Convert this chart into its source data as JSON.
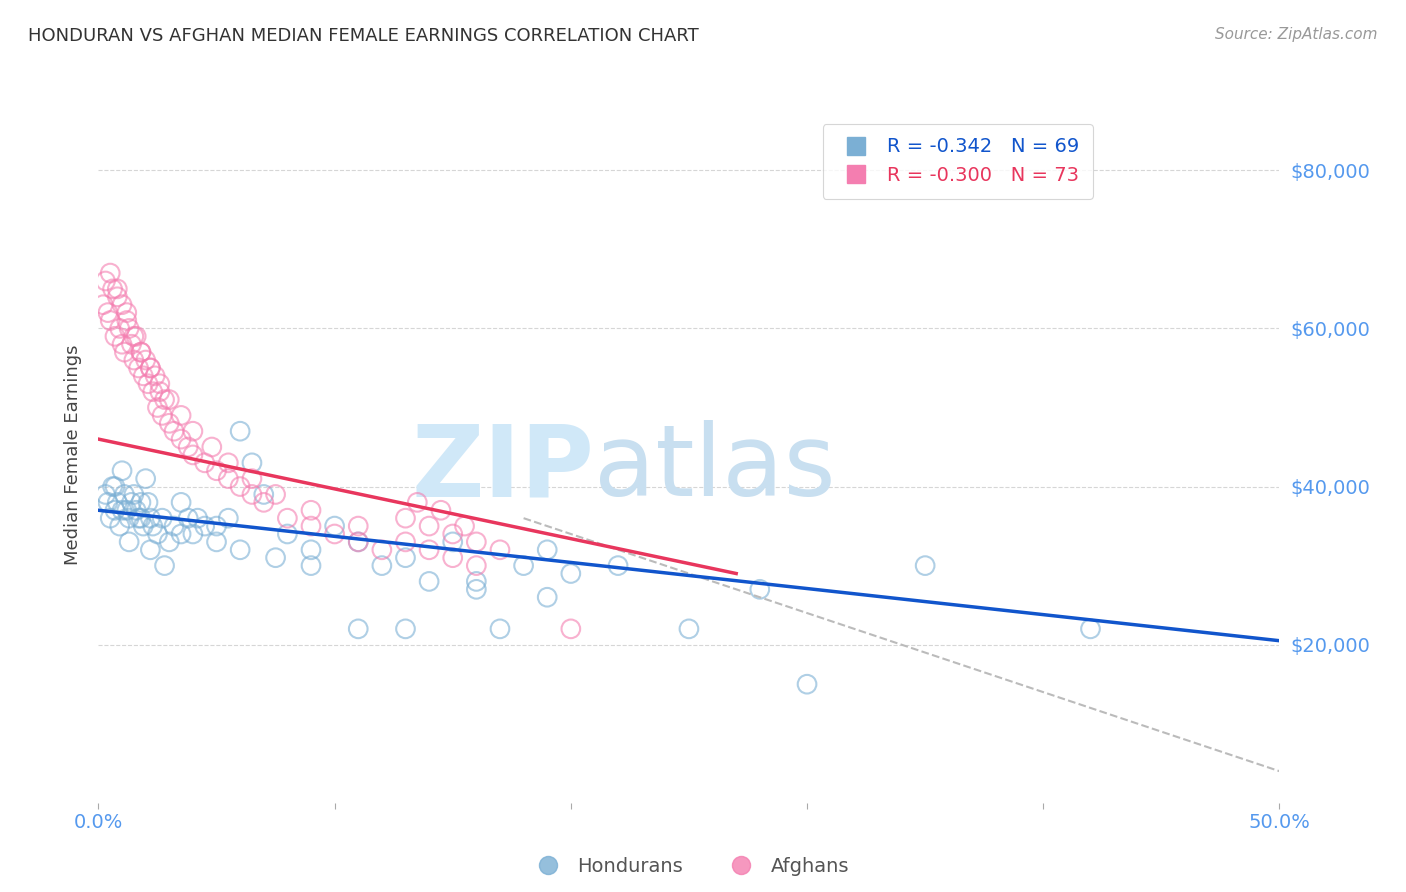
{
  "title": "HONDURAN VS AFGHAN MEDIAN FEMALE EARNINGS CORRELATION CHART",
  "source": "Source: ZipAtlas.com",
  "ylabel": "Median Female Earnings",
  "ytick_labels": [
    "$20,000",
    "$40,000",
    "$60,000",
    "$80,000"
  ],
  "ytick_values": [
    20000,
    40000,
    60000,
    80000
  ],
  "ylim": [
    0,
    88000
  ],
  "xlim": [
    0.0,
    0.5
  ],
  "blue_color": "#7BAFD4",
  "pink_color": "#F47EB0",
  "trendline_blue_color": "#1155CC",
  "trendline_pink_color": "#E8365D",
  "trendline_dashed_color": "#BBBBBB",
  "title_color": "#333333",
  "source_color": "#999999",
  "ylabel_color": "#444444",
  "ytick_color": "#5599EE",
  "xtick_color": "#5599EE",
  "watermark_zip_color": "#D0E8F8",
  "watermark_atlas_color": "#C8DFF0",
  "background_color": "#FFFFFF",
  "grid_color": "#CCCCCC",
  "honduran_scatter_x": [
    0.003,
    0.004,
    0.005,
    0.006,
    0.007,
    0.008,
    0.009,
    0.01,
    0.011,
    0.012,
    0.013,
    0.014,
    0.015,
    0.016,
    0.017,
    0.018,
    0.019,
    0.02,
    0.021,
    0.022,
    0.023,
    0.025,
    0.027,
    0.03,
    0.032,
    0.035,
    0.038,
    0.04,
    0.045,
    0.05,
    0.055,
    0.06,
    0.065,
    0.07,
    0.08,
    0.09,
    0.1,
    0.11,
    0.12,
    0.13,
    0.14,
    0.15,
    0.16,
    0.17,
    0.18,
    0.19,
    0.2,
    0.22,
    0.25,
    0.28,
    0.007,
    0.01,
    0.013,
    0.018,
    0.022,
    0.028,
    0.035,
    0.042,
    0.05,
    0.06,
    0.075,
    0.09,
    0.11,
    0.13,
    0.16,
    0.19,
    0.35,
    0.42,
    0.3
  ],
  "honduran_scatter_y": [
    39000,
    38000,
    36000,
    40000,
    37000,
    38000,
    35000,
    42000,
    39000,
    37000,
    36000,
    38000,
    39000,
    37000,
    36000,
    38000,
    35000,
    41000,
    38000,
    36000,
    35000,
    34000,
    36000,
    33000,
    35000,
    38000,
    36000,
    34000,
    35000,
    33000,
    36000,
    47000,
    43000,
    39000,
    34000,
    32000,
    35000,
    33000,
    30000,
    31000,
    28000,
    33000,
    27000,
    22000,
    30000,
    32000,
    29000,
    30000,
    22000,
    27000,
    40000,
    37000,
    33000,
    36000,
    32000,
    30000,
    34000,
    36000,
    35000,
    32000,
    31000,
    30000,
    22000,
    22000,
    28000,
    26000,
    30000,
    22000,
    15000
  ],
  "afghan_scatter_x": [
    0.002,
    0.003,
    0.004,
    0.005,
    0.006,
    0.007,
    0.008,
    0.009,
    0.01,
    0.011,
    0.012,
    0.013,
    0.014,
    0.015,
    0.016,
    0.017,
    0.018,
    0.019,
    0.02,
    0.021,
    0.022,
    0.023,
    0.024,
    0.025,
    0.026,
    0.027,
    0.028,
    0.03,
    0.032,
    0.035,
    0.038,
    0.04,
    0.045,
    0.05,
    0.055,
    0.06,
    0.065,
    0.07,
    0.08,
    0.09,
    0.1,
    0.11,
    0.12,
    0.005,
    0.008,
    0.01,
    0.012,
    0.015,
    0.018,
    0.022,
    0.026,
    0.03,
    0.035,
    0.04,
    0.048,
    0.055,
    0.065,
    0.075,
    0.09,
    0.11,
    0.13,
    0.15,
    0.135,
    0.155,
    0.13,
    0.15,
    0.17,
    0.14,
    0.16,
    0.145,
    0.14,
    0.16,
    0.2
  ],
  "afghan_scatter_y": [
    63000,
    66000,
    62000,
    61000,
    65000,
    59000,
    64000,
    60000,
    58000,
    57000,
    62000,
    60000,
    58000,
    56000,
    59000,
    55000,
    57000,
    54000,
    56000,
    53000,
    55000,
    52000,
    54000,
    50000,
    52000,
    49000,
    51000,
    48000,
    47000,
    46000,
    45000,
    44000,
    43000,
    42000,
    41000,
    40000,
    39000,
    38000,
    36000,
    35000,
    34000,
    33000,
    32000,
    67000,
    65000,
    63000,
    61000,
    59000,
    57000,
    55000,
    53000,
    51000,
    49000,
    47000,
    45000,
    43000,
    41000,
    39000,
    37000,
    35000,
    33000,
    31000,
    38000,
    35000,
    36000,
    34000,
    32000,
    35000,
    33000,
    37000,
    32000,
    30000,
    22000
  ],
  "blue_trendline_x": [
    0.0,
    0.5
  ],
  "blue_trendline_y": [
    37000,
    20500
  ],
  "pink_trendline_x": [
    0.0,
    0.27
  ],
  "pink_trendline_y": [
    46000,
    29000
  ],
  "dashed_trendline_x": [
    0.18,
    0.5
  ],
  "dashed_trendline_y": [
    36000,
    4000
  ],
  "figsize": [
    14.06,
    8.92
  ],
  "dpi": 100
}
